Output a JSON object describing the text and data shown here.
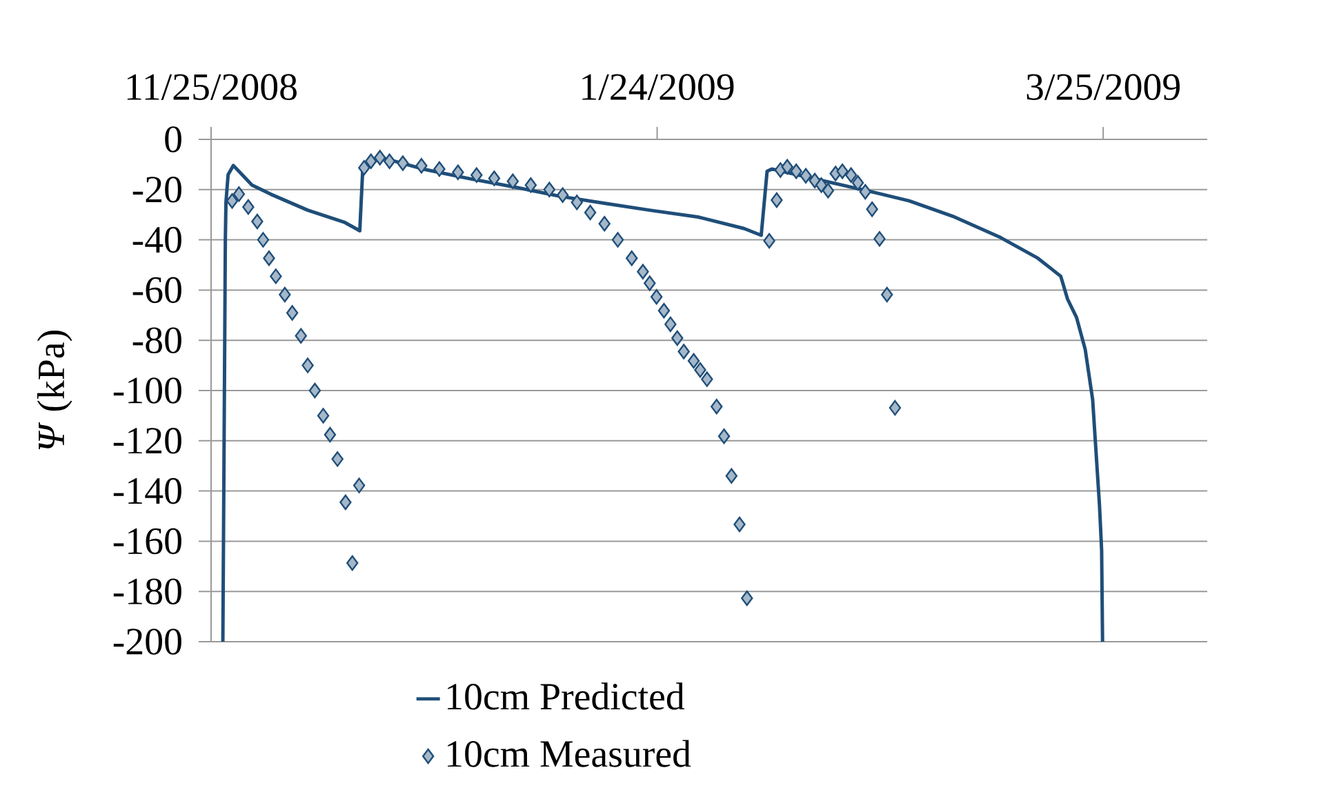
{
  "chart_data": {
    "type": "line",
    "ylabel": "*Ψ* (kPa)",
    "xlim": [
      "2008-11-25",
      "2009-04-08"
    ],
    "xticks": [
      {
        "value": "2008-11-25",
        "label": "11/25/2008"
      },
      {
        "value": "2009-01-24",
        "label": "1/24/2009"
      },
      {
        "value": "2009-03-25",
        "label": "3/25/2009"
      }
    ],
    "ylim": [
      -200,
      0
    ],
    "yticks": [
      -200,
      -180,
      -160,
      -140,
      -120,
      -100,
      -80,
      -60,
      -40,
      -20,
      0
    ],
    "grid": "y",
    "legend": "bottom",
    "series": [
      {
        "name": "10cm Predicted",
        "marker": "none",
        "color": "#1f4e79",
        "x": [
          "2008-11-26T14:00",
          "2008-11-26T19:00",
          "2008-11-26T22:00",
          "2008-11-27T00:00",
          "2008-11-27T07:00",
          "2008-11-28T00:00",
          "2008-11-30T12:00",
          "2008-12-03T00:00",
          "2008-12-08T00:00",
          "2008-12-13T00:00",
          "2008-12-15T00:00",
          "2008-12-15T10:00",
          "2008-12-18T00:00",
          "2008-12-23T12:00",
          "2008-12-29T12:00",
          "2009-01-05T00:00",
          "2009-01-11T00:00",
          "2009-01-17T00:00",
          "2009-01-23T00:00",
          "2009-01-29T12:00",
          "2009-02-04T17:00",
          "2009-02-07T00:00",
          "2009-02-07T19:00",
          "2009-02-08T10:00",
          "2009-02-21T22:00",
          "2009-02-26T22:00",
          "2009-03-05T00:00",
          "2009-03-11T05:00",
          "2009-03-16T05:00",
          "2009-03-19T07:00",
          "2009-03-20T05:00",
          "2009-03-21T10:00",
          "2009-03-22T14:00",
          "2009-03-23T14:00",
          "2009-03-24T12:00",
          "2009-03-24T19:00",
          "2009-03-24T22:00"
        ],
        "values": [
          -200,
          -100,
          -40,
          -25,
          -14,
          -10.4,
          -18.2,
          -21.8,
          -28.2,
          -33.1,
          -36.4,
          -10.9,
          -7.3,
          -11.8,
          -15.5,
          -19.1,
          -22.7,
          -25.5,
          -28.2,
          -30.9,
          -35.5,
          -38.2,
          -12.7,
          -11.8,
          -20.9,
          -24.5,
          -30.9,
          -39.1,
          -47.3,
          -54.5,
          -63.6,
          -70.9,
          -83.6,
          -103.6,
          -145.5,
          -163.6,
          -200
        ]
      },
      {
        "name": "10cm Measured",
        "type": "scatter",
        "marker": "diamond",
        "color": "#1f4e79",
        "x": [
          "2008-11-27T20:00",
          "2008-11-28T18:00",
          "2008-11-30T00:00",
          "2008-12-01T05:00",
          "2008-12-02T00:00",
          "2008-12-02T19:00",
          "2008-12-03T17:00",
          "2008-12-04T22:00",
          "2008-12-05T22:00",
          "2008-12-07T02:00",
          "2008-12-08T00:00",
          "2008-12-08T23:00",
          "2008-12-10T02:00",
          "2008-12-11T00:00",
          "2008-12-12T00:00",
          "2008-12-13T02:00",
          "2008-12-14T00:00",
          "2008-12-14T22:00",
          "2008-12-15T14:00",
          "2008-12-16T12:00",
          "2008-12-17T17:00",
          "2008-12-19T00:00",
          "2008-12-20T19:00",
          "2008-12-23T07:00",
          "2008-12-25T17:00",
          "2008-12-28T05:00",
          "2008-12-30T17:00",
          "2009-01-02T02:00",
          "2009-01-04T14:00",
          "2009-01-07T00:00",
          "2009-01-09T12:00",
          "2009-01-11T07:00",
          "2009-01-13T05:00",
          "2009-01-15T00:00",
          "2009-01-16T22:00",
          "2009-01-18T17:00",
          "2009-01-20T14:00",
          "2009-01-22T02:00",
          "2009-01-23T00:00",
          "2009-01-23T22:00",
          "2009-01-24T22:00",
          "2009-01-25T19:00",
          "2009-01-26T17:00",
          "2009-01-27T14:00",
          "2009-01-28T22:00",
          "2009-01-29T19:00",
          "2009-01-30T17:00",
          "2009-02-01T00:00",
          "2009-02-02T00:00",
          "2009-02-03T00:00",
          "2009-02-04T02:00",
          "2009-02-05T02:00",
          "2009-02-08T02:00",
          "2009-02-09T02:00",
          "2009-02-09T14:00",
          "2009-02-10T12:00",
          "2009-02-11T17:00",
          "2009-02-13T00:00",
          "2009-02-14T05:00",
          "2009-02-15T02:00",
          "2009-02-16T00:00",
          "2009-02-17T00:00",
          "2009-02-17T22:00",
          "2009-02-19T02:00",
          "2009-02-20T00:00",
          "2009-02-21T00:00",
          "2009-02-21T22:00",
          "2009-02-22T22:00",
          "2009-02-23T22:00",
          "2009-02-25T00:00"
        ],
        "values": [
          -24.5,
          -21.8,
          -26.9,
          -32.7,
          -40,
          -47.3,
          -54.5,
          -61.8,
          -69.1,
          -78.2,
          -90,
          -100,
          -110,
          -117.6,
          -127.3,
          -144.5,
          -168.7,
          -137.8,
          -11.3,
          -8.7,
          -7.3,
          -8.7,
          -9.5,
          -10.5,
          -11.8,
          -13.1,
          -14.2,
          -15.5,
          -16.7,
          -18.2,
          -20,
          -22.2,
          -25.1,
          -29.1,
          -33.6,
          -40,
          -47.3,
          -52.7,
          -57.3,
          -62.7,
          -68.2,
          -73.6,
          -79.1,
          -84.5,
          -88.2,
          -91.8,
          -95.5,
          -106.4,
          -118.2,
          -134,
          -153.3,
          -182.7,
          -40.4,
          -24.2,
          -12.2,
          -10.9,
          -12.7,
          -14.5,
          -16.4,
          -18.2,
          -20.4,
          -13.6,
          -12.7,
          -14.2,
          -17.3,
          -20.9,
          -27.8,
          -39.6,
          -61.8,
          -106.9
        ]
      }
    ]
  }
}
